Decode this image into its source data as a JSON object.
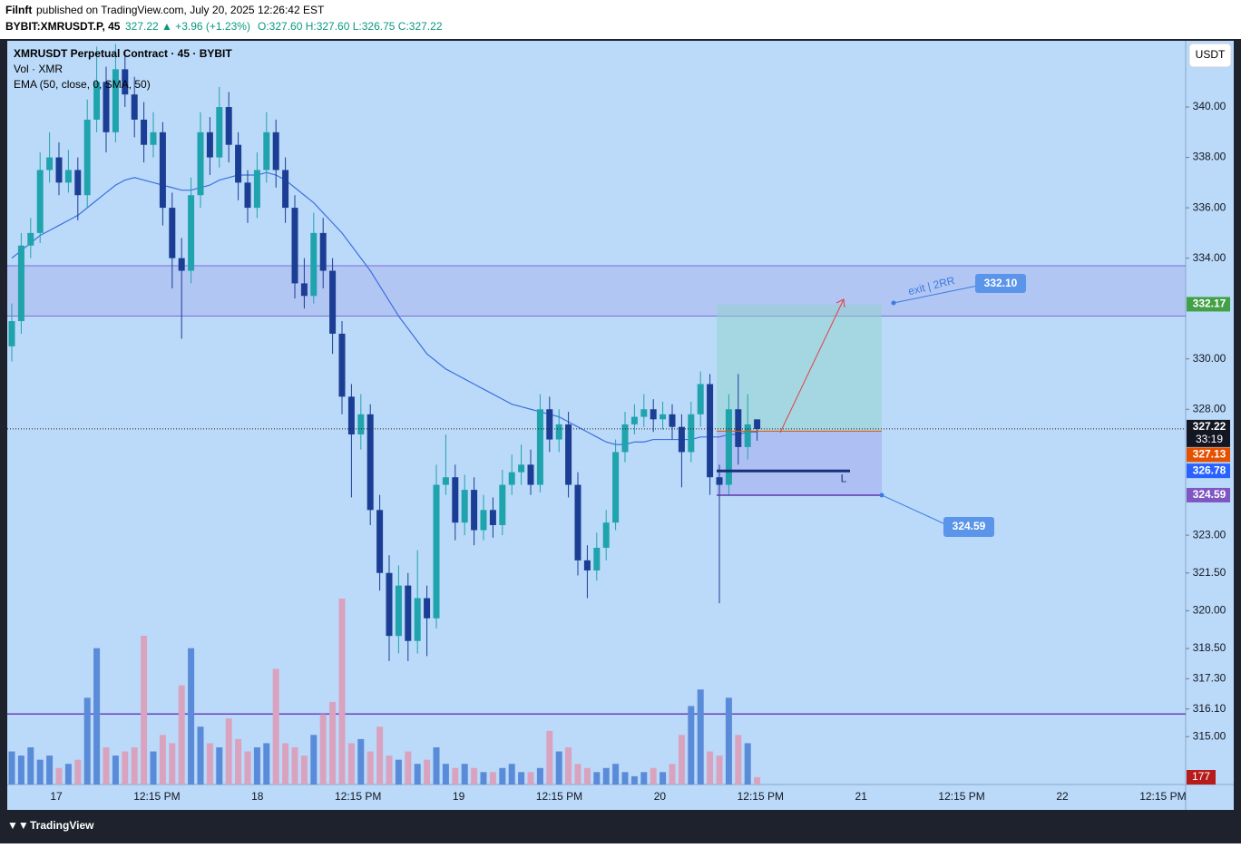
{
  "published": {
    "user": "Filnft",
    "text": "published on TradingView.com, July 20, 2025 12:26:42 EST"
  },
  "quote": {
    "symbol": "BYBIT:XMRUSDT.P, 45",
    "last": "327.22",
    "change": "▲ +3.96 (+1.23%)",
    "ohlc": "O:327.60 H:327.60 L:326.75 C:327.22"
  },
  "footer": {
    "brand": "TradingView"
  },
  "chart_data": {
    "type": "candlestick",
    "legend": [
      "XMRUSDT Perpetual Contract · 45 · BYBIT",
      "Vol · XMR",
      "EMA (50, close, 0, SMA, 50)"
    ],
    "currency": "USDT",
    "up_color": "#1fa3ac",
    "down_color": "#1b3d94",
    "volume_up_color": "#5a8bd8",
    "volume_down_color": "#d9a3bf",
    "ema_color": "#3d6fe0",
    "ylim": [
      313.1,
      342.63
    ],
    "yticks": [
      {
        "value": 340,
        "label": "340.00"
      },
      {
        "value": 338,
        "label": "338.00"
      },
      {
        "value": 336,
        "label": "336.00"
      },
      {
        "value": 334,
        "label": "334.00"
      },
      {
        "value": 330,
        "label": "330.00"
      },
      {
        "value": 328,
        "label": "328.00"
      },
      {
        "value": 323,
        "label": "323.00"
      },
      {
        "value": 321.5,
        "label": "321.50"
      },
      {
        "value": 320,
        "label": "320.00"
      },
      {
        "value": 318.5,
        "label": "318.50"
      },
      {
        "value": 317.3,
        "label": "317.30"
      },
      {
        "value": 316.1,
        "label": "316.10"
      },
      {
        "value": 315,
        "label": "315.00"
      }
    ],
    "xticks": [
      "17",
      "12:15 PM",
      "18",
      "12:15 PM",
      "19",
      "12:15 PM",
      "20",
      "12:15 PM",
      "21",
      "12:15 PM",
      "22",
      "12:15 PM"
    ],
    "candles": [
      [
        330.5,
        332.2,
        329.9,
        331.5
      ],
      [
        331.5,
        335.0,
        331.0,
        334.5
      ],
      [
        334.5,
        335.6,
        334.0,
        335.0
      ],
      [
        335.0,
        338.2,
        334.6,
        337.5
      ],
      [
        337.5,
        339.0,
        337.0,
        338.0
      ],
      [
        338.0,
        338.6,
        336.5,
        337.0
      ],
      [
        337.0,
        338.3,
        336.6,
        337.5
      ],
      [
        337.5,
        338.0,
        335.5,
        336.5
      ],
      [
        336.5,
        340.3,
        336.0,
        339.5
      ],
      [
        339.5,
        342.4,
        339.0,
        341.0
      ],
      [
        341.0,
        341.6,
        338.2,
        339.0
      ],
      [
        339.0,
        342.5,
        338.6,
        341.5
      ],
      [
        341.5,
        342.2,
        340.0,
        340.5
      ],
      [
        340.5,
        341.2,
        338.8,
        339.5
      ],
      [
        339.5,
        340.2,
        337.8,
        338.5
      ],
      [
        338.5,
        339.8,
        338.0,
        339.0
      ],
      [
        339.0,
        339.4,
        335.3,
        336.0
      ],
      [
        336.0,
        336.6,
        332.8,
        334.0
      ],
      [
        334.0,
        334.8,
        330.8,
        333.5
      ],
      [
        333.5,
        337.2,
        333.0,
        336.5
      ],
      [
        336.5,
        339.8,
        336.0,
        339.0
      ],
      [
        339.0,
        339.6,
        337.3,
        338.0
      ],
      [
        338.0,
        340.8,
        337.6,
        340.0
      ],
      [
        340.0,
        340.6,
        337.8,
        338.5
      ],
      [
        338.5,
        339.0,
        336.3,
        337.0
      ],
      [
        337.0,
        337.5,
        335.4,
        336.0
      ],
      [
        336.0,
        338.2,
        335.6,
        337.5
      ],
      [
        337.5,
        339.8,
        337.0,
        339.0
      ],
      [
        339.0,
        339.5,
        336.8,
        337.5
      ],
      [
        337.5,
        338.0,
        335.4,
        336.0
      ],
      [
        336.0,
        336.5,
        332.4,
        333.0
      ],
      [
        333.0,
        334.0,
        332.0,
        332.5
      ],
      [
        332.5,
        335.8,
        332.2,
        335.0
      ],
      [
        335.0,
        335.6,
        332.8,
        333.5
      ],
      [
        333.5,
        334.0,
        330.2,
        331.0
      ],
      [
        331.0,
        331.5,
        327.8,
        328.5
      ],
      [
        328.5,
        329.0,
        324.5,
        327.0
      ],
      [
        327.0,
        328.6,
        326.4,
        327.8
      ],
      [
        327.8,
        328.2,
        323.4,
        324.0
      ],
      [
        324.0,
        324.6,
        320.8,
        321.5
      ],
      [
        321.5,
        322.2,
        318.0,
        319.0
      ],
      [
        319.0,
        321.8,
        318.3,
        321.0
      ],
      [
        321.0,
        321.5,
        318.0,
        318.8
      ],
      [
        318.8,
        322.4,
        318.3,
        320.5
      ],
      [
        320.5,
        321.0,
        318.2,
        319.7
      ],
      [
        319.7,
        325.8,
        319.3,
        325.0
      ],
      [
        325.0,
        327.0,
        324.6,
        325.3
      ],
      [
        325.3,
        325.8,
        322.8,
        323.5
      ],
      [
        323.5,
        325.4,
        323.0,
        324.8
      ],
      [
        324.8,
        325.3,
        322.6,
        323.2
      ],
      [
        323.2,
        324.6,
        322.8,
        324.0
      ],
      [
        324.0,
        324.5,
        322.9,
        323.4
      ],
      [
        323.4,
        325.6,
        323.0,
        325.0
      ],
      [
        325.0,
        326.2,
        324.6,
        325.5
      ],
      [
        325.5,
        326.6,
        325.0,
        325.8
      ],
      [
        325.8,
        326.4,
        324.6,
        325.0
      ],
      [
        325.0,
        328.6,
        324.7,
        328.0
      ],
      [
        328.0,
        328.5,
        326.3,
        326.8
      ],
      [
        326.8,
        328.0,
        326.3,
        327.4
      ],
      [
        327.4,
        327.9,
        324.5,
        325.0
      ],
      [
        325.0,
        325.5,
        321.4,
        322.0
      ],
      [
        322.0,
        322.6,
        320.5,
        321.6
      ],
      [
        321.6,
        323.1,
        321.2,
        322.5
      ],
      [
        322.5,
        324.0,
        322.0,
        323.5
      ],
      [
        323.5,
        326.8,
        323.2,
        326.3
      ],
      [
        326.3,
        327.9,
        325.9,
        327.4
      ],
      [
        327.4,
        328.2,
        327.0,
        327.7
      ],
      [
        327.7,
        328.6,
        327.3,
        328.0
      ],
      [
        328.0,
        328.4,
        327.1,
        327.6
      ],
      [
        327.6,
        328.3,
        327.2,
        327.8
      ],
      [
        327.8,
        328.2,
        326.8,
        327.3
      ],
      [
        327.3,
        327.8,
        324.9,
        326.3
      ],
      [
        326.3,
        328.3,
        325.9,
        327.8
      ],
      [
        327.8,
        329.5,
        327.3,
        329.0
      ],
      [
        329.0,
        329.4,
        324.6,
        325.3
      ],
      [
        325.3,
        325.8,
        320.3,
        325.0
      ],
      [
        325.0,
        328.6,
        324.6,
        328.0
      ],
      [
        328.0,
        329.4,
        325.8,
        326.5
      ],
      [
        326.5,
        328.6,
        326.0,
        327.4
      ],
      [
        327.6,
        327.6,
        326.75,
        327.22
      ]
    ],
    "volumes": [
      800,
      700,
      900,
      600,
      700,
      400,
      500,
      600,
      2100,
      3300,
      900,
      700,
      800,
      900,
      3600,
      800,
      1200,
      1000,
      2400,
      3300,
      1400,
      1000,
      900,
      1600,
      1100,
      800,
      900,
      1000,
      2800,
      1000,
      900,
      700,
      1200,
      1700,
      2000,
      4500,
      1000,
      1100,
      800,
      1400,
      700,
      600,
      800,
      500,
      600,
      900,
      500,
      400,
      500,
      400,
      300,
      300,
      400,
      500,
      300,
      300,
      400,
      1300,
      800,
      900,
      500,
      400,
      300,
      400,
      500,
      300,
      200,
      300,
      400,
      300,
      500,
      1200,
      1900,
      2300,
      800,
      700,
      2100,
      1200,
      1000,
      177
    ],
    "vlim": [
      0,
      18000
    ],
    "ema": [
      334.0,
      334.3,
      334.6,
      334.9,
      335.1,
      335.3,
      335.5,
      335.7,
      336.0,
      336.3,
      336.6,
      336.9,
      337.1,
      337.2,
      337.1,
      337.0,
      336.9,
      336.8,
      336.7,
      336.7,
      336.8,
      336.9,
      337.1,
      337.2,
      337.3,
      337.3,
      337.3,
      337.4,
      337.3,
      337.1,
      336.8,
      336.5,
      336.2,
      335.8,
      335.4,
      335.0,
      334.5,
      334.0,
      333.5,
      332.9,
      332.3,
      331.7,
      331.2,
      330.7,
      330.2,
      329.9,
      329.6,
      329.4,
      329.2,
      329.0,
      328.8,
      328.6,
      328.4,
      328.2,
      328.1,
      328.0,
      327.9,
      327.8,
      327.7,
      327.5,
      327.3,
      327.1,
      326.9,
      326.7,
      326.6,
      326.6,
      326.7,
      326.7,
      326.8,
      326.8,
      326.8,
      326.8,
      326.8,
      326.9,
      326.9,
      326.9,
      327.0,
      327.0,
      327.1,
      327.1
    ],
    "zone": [
      331.7,
      333.7
    ],
    "hline": 315.9,
    "order_line": {
      "price": 325.55,
      "label": "L"
    },
    "position": {
      "target": 332.17,
      "entry": 327.13,
      "stop": 324.59
    },
    "last_price": 327.22,
    "countdown": "33:19",
    "bid": 326.78,
    "annotations": {
      "exit": "exit | 2RR",
      "exit_price": "332.10"
    }
  }
}
